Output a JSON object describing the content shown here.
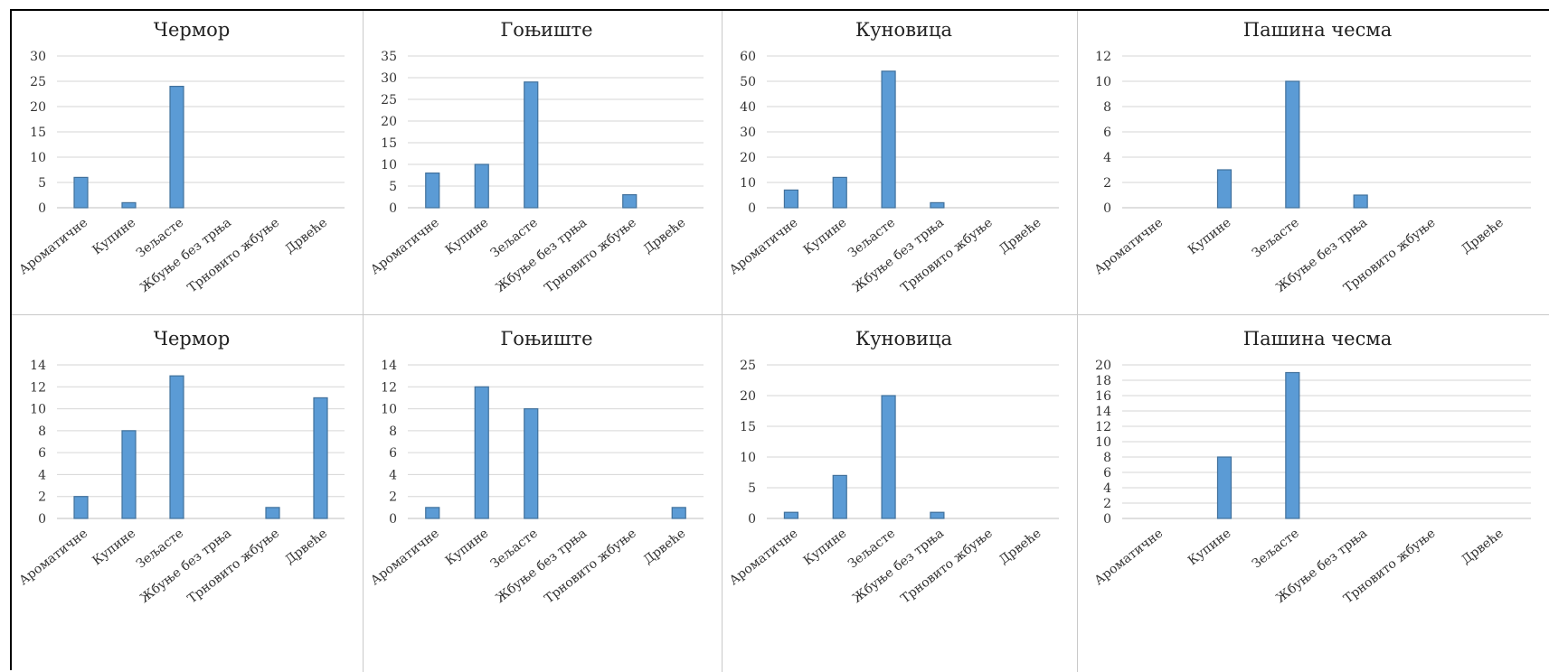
{
  "chart_data": [
    {
      "type": "bar",
      "title": "Чермор",
      "categories": [
        "Ароматичне",
        "Купине",
        "Зељасте",
        "Жбуње без трња",
        "Трновито жбуње",
        "Дрвеће"
      ],
      "values": [
        6,
        1,
        24,
        0,
        0,
        0
      ],
      "ylim": [
        0,
        30
      ],
      "yticks": [
        0,
        5,
        10,
        15,
        20,
        25,
        30
      ],
      "grid": true,
      "legend": "none"
    },
    {
      "type": "bar",
      "title": "Гоњиште",
      "categories": [
        "Ароматичне",
        "Купине",
        "Зељасте",
        "Жбуње без трња",
        "Трновито жбуње",
        "Дрвеће"
      ],
      "values": [
        8,
        10,
        29,
        0,
        3,
        0
      ],
      "ylim": [
        0,
        35
      ],
      "yticks": [
        0,
        5,
        10,
        15,
        20,
        25,
        30,
        35
      ],
      "grid": true,
      "legend": "none"
    },
    {
      "type": "bar",
      "title": "Куновица",
      "categories": [
        "Ароматичне",
        "Купине",
        "Зељасте",
        "Жбуње без трња",
        "Трновито жбуње",
        "Дрвеће"
      ],
      "values": [
        7,
        12,
        54,
        2,
        0,
        0
      ],
      "ylim": [
        0,
        60
      ],
      "yticks": [
        0,
        10,
        20,
        30,
        40,
        50,
        60
      ],
      "grid": true,
      "legend": "none"
    },
    {
      "type": "bar",
      "title": "Пашина чесма",
      "categories": [
        "Ароматичне",
        "Купине",
        "Зељасте",
        "Жбуње без трња",
        "Трновито жбуње",
        "Дрвеће"
      ],
      "values": [
        0,
        3,
        10,
        1,
        0,
        0
      ],
      "ylim": [
        0,
        12
      ],
      "yticks": [
        0,
        2,
        4,
        6,
        8,
        10,
        12
      ],
      "grid": true,
      "legend": "none"
    },
    {
      "type": "bar",
      "title": "Чермор",
      "categories": [
        "Ароматичне",
        "Купине",
        "Зељасте",
        "Жбуње без трња",
        "Трновито жбуње",
        "Дрвеће"
      ],
      "values": [
        2,
        8,
        13,
        0,
        1,
        11
      ],
      "ylim": [
        0,
        14
      ],
      "yticks": [
        0,
        2,
        4,
        6,
        8,
        10,
        12,
        14
      ],
      "grid": true,
      "legend": "none"
    },
    {
      "type": "bar",
      "title": "Гоњиште",
      "categories": [
        "Ароматичне",
        "Купине",
        "Зељасте",
        "Жбуње без трња",
        "Трновито жбуње",
        "Дрвеће"
      ],
      "values": [
        1,
        12,
        10,
        0,
        0,
        1
      ],
      "ylim": [
        0,
        14
      ],
      "yticks": [
        0,
        2,
        4,
        6,
        8,
        10,
        12,
        14
      ],
      "grid": true,
      "legend": "none"
    },
    {
      "type": "bar",
      "title": "Куновица",
      "categories": [
        "Ароматичне",
        "Купине",
        "Зељасте",
        "Жбуње без трња",
        "Трновито жбуње",
        "Дрвеће"
      ],
      "values": [
        1,
        7,
        20,
        1,
        0,
        0
      ],
      "ylim": [
        0,
        25
      ],
      "yticks": [
        0,
        5,
        10,
        15,
        20,
        25
      ],
      "grid": true,
      "legend": "none"
    },
    {
      "type": "bar",
      "title": "Пашина чесма",
      "categories": [
        "Ароматичне",
        "Купине",
        "Зељасте",
        "Жбуње без трња",
        "Трновито жбуње",
        "Дрвеће"
      ],
      "values": [
        0,
        8,
        19,
        0,
        0,
        0
      ],
      "ylim": [
        0,
        20
      ],
      "yticks": [
        0,
        2,
        4,
        6,
        8,
        10,
        12,
        14,
        16,
        18,
        20
      ],
      "grid": true,
      "legend": "none"
    }
  ],
  "colors": {
    "bar_fill": "#5b9bd5",
    "bar_stroke": "#41719c",
    "gridline": "#d6d6d6",
    "panel_divider": "#c9c9c9",
    "frame": "#000000"
  }
}
